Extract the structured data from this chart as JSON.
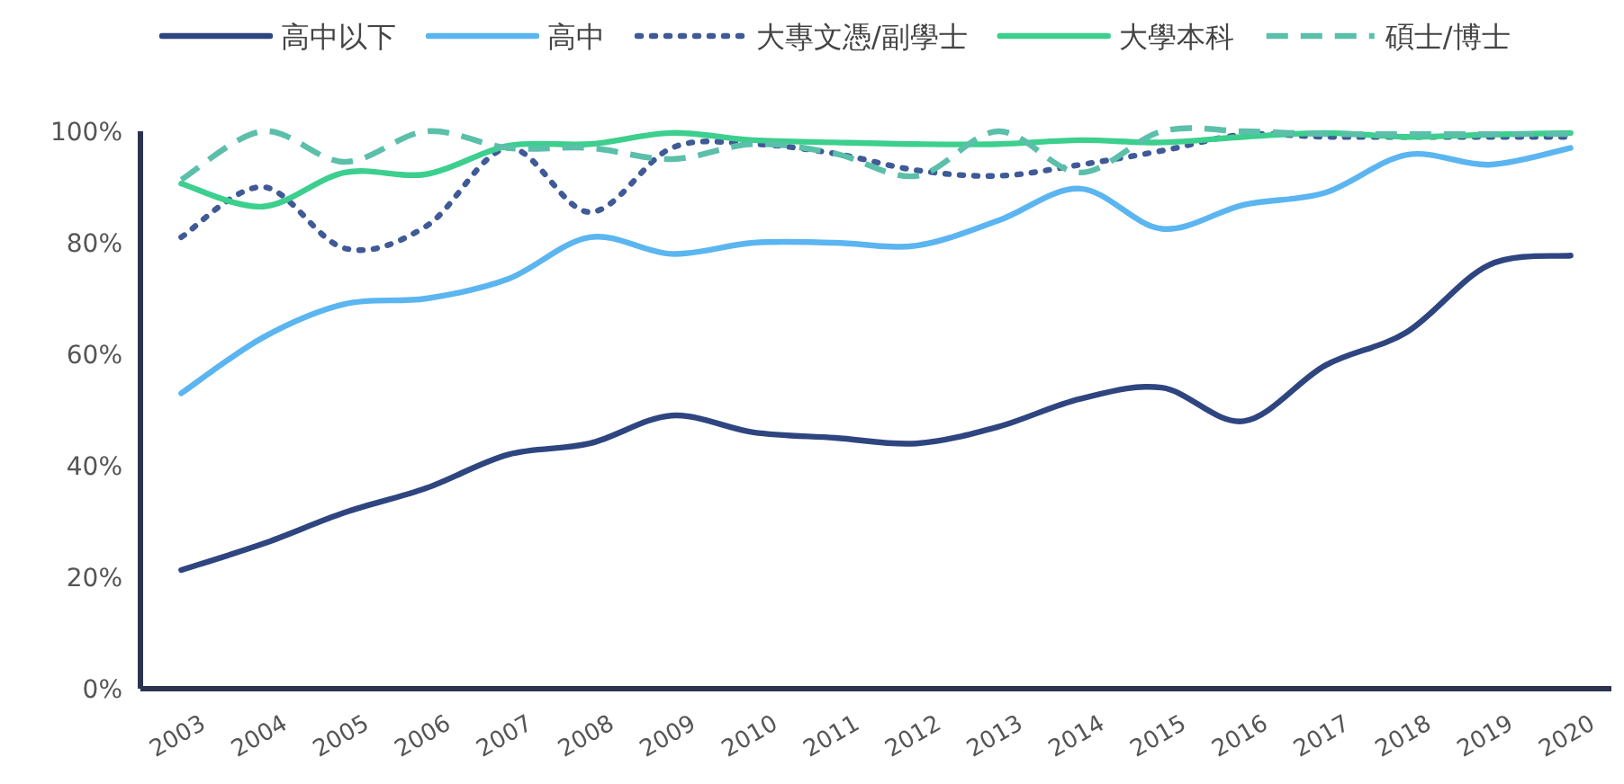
{
  "chart_data": {
    "type": "line",
    "categories": [
      "2003",
      "2004",
      "2005",
      "2006",
      "2007",
      "2008",
      "2009",
      "2010",
      "2011",
      "2012",
      "2013",
      "2014",
      "2015",
      "2016",
      "2017",
      "2018",
      "2019",
      "2020"
    ],
    "ylim": [
      0,
      100
    ],
    "yticks": [
      {
        "value": 0,
        "label": "0%"
      },
      {
        "value": 20,
        "label": "20%"
      },
      {
        "value": 40,
        "label": "40%"
      },
      {
        "value": 60,
        "label": "60%"
      },
      {
        "value": 80,
        "label": "80%"
      },
      {
        "value": 100,
        "label": "100%"
      }
    ],
    "grid": false,
    "legend": "top",
    "marker": "none",
    "series": [
      {
        "name": "高中以下",
        "color": "#2e4580",
        "line_style": "solid",
        "values": [
          21.3,
          26,
          31.6,
          36,
          42,
          44,
          49,
          46,
          45,
          44,
          47,
          52,
          54,
          48,
          58,
          64,
          76,
          77.7
        ]
      },
      {
        "name": "高中",
        "color": "#5bb5f0",
        "line_style": "solid",
        "values": [
          53,
          63,
          69,
          70,
          73.5,
          81,
          78,
          80,
          80,
          79.5,
          84,
          89.7,
          82.5,
          86.8,
          89,
          95.8,
          94,
          97
        ]
      },
      {
        "name": "大專文憑/副學士",
        "color": "#3f5a96",
        "line_style": "dotted",
        "values": [
          81,
          90,
          79,
          83,
          97,
          85.5,
          97,
          97.7,
          96,
          93,
          92,
          94,
          96.5,
          99.4,
          99,
          99,
          99,
          99
        ]
      },
      {
        "name": "大學本科",
        "color": "#3ccf8e",
        "line_style": "solid",
        "values": [
          90.6,
          86.5,
          92.6,
          92.3,
          97.4,
          97.7,
          99.7,
          98.4,
          98,
          97.7,
          97.7,
          98.4,
          98,
          99,
          99.7,
          99,
          99.4,
          99.7
        ]
      },
      {
        "name": "碩士/博士",
        "color": "#5bbfaa",
        "line_style": "dashed",
        "values": [
          91.3,
          100,
          94.5,
          100,
          97,
          97,
          95,
          97.7,
          96,
          92,
          100,
          92.6,
          100,
          100,
          99.5,
          99.5,
          99.5,
          99.5
        ]
      }
    ]
  }
}
